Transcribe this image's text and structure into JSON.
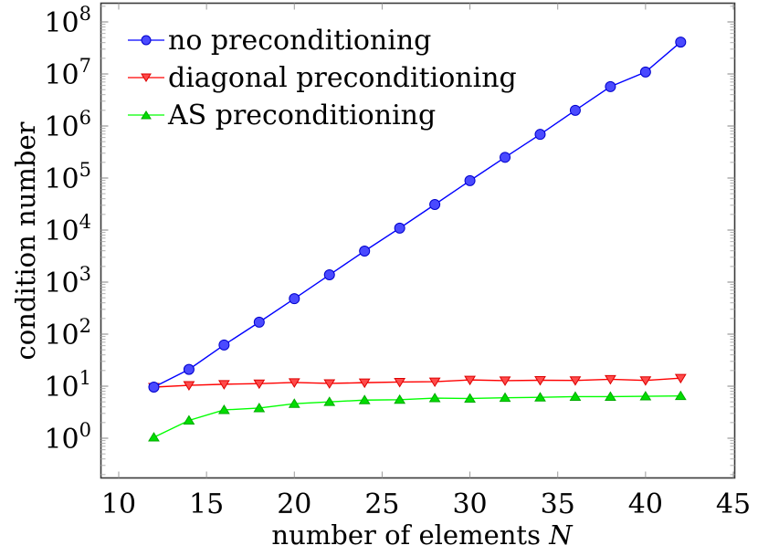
{
  "chart_data": {
    "type": "line",
    "title": "",
    "xlabel": "number of elements N",
    "ylabel": "condition number",
    "xscale": "linear",
    "yscale": "log",
    "xlim": [
      9,
      45
    ],
    "ylim": [
      0.18,
      230000000.0
    ],
    "xticks": [
      10,
      15,
      20,
      25,
      30,
      35,
      40,
      45
    ],
    "xtick_labels": [
      "10",
      "15",
      "20",
      "25",
      "30",
      "35",
      "40",
      "45"
    ],
    "yticks": [
      1,
      10,
      100,
      1000,
      10000,
      100000,
      1000000,
      10000000,
      100000000
    ],
    "ytick_labels": [
      "10^0",
      "10^1",
      "10^2",
      "10^3",
      "10^4",
      "10^5",
      "10^6",
      "10^7",
      "10^8"
    ],
    "grid": false,
    "legend_position": "upper left",
    "x": [
      12,
      14,
      16,
      18,
      20,
      22,
      24,
      26,
      28,
      30,
      32,
      34,
      36,
      38,
      40,
      42
    ],
    "series": [
      {
        "name": "no preconditioning",
        "color": "#0000ff",
        "marker": "circle",
        "values": [
          9.6,
          21,
          62,
          170,
          480,
          1380,
          3950,
          10900,
          31000,
          89000,
          250000,
          690000,
          2000000,
          5700000,
          10900000,
          41000000
        ]
      },
      {
        "name": "diagonal preconditioning",
        "color": "#ff0000",
        "marker": "triangle-down",
        "values": [
          9.6,
          10.4,
          10.9,
          11.2,
          11.8,
          11.3,
          11.7,
          12.0,
          12.2,
          13.2,
          12.8,
          13.0,
          12.9,
          13.6,
          12.9,
          14.3
        ]
      },
      {
        "name": "AS preconditioning",
        "color": "#00ff00",
        "marker": "triangle-up",
        "values": [
          1.04,
          2.2,
          3.5,
          3.8,
          4.6,
          5.0,
          5.4,
          5.5,
          5.9,
          5.8,
          6.0,
          6.1,
          6.3,
          6.3,
          6.4,
          6.5
        ]
      }
    ]
  },
  "axes": {
    "xlabel_text": "number of elements ",
    "xlabel_var": "N",
    "ylabel_text": "condition number"
  },
  "legend": {
    "items": [
      {
        "label": "no preconditioning"
      },
      {
        "label": "diagonal preconditioning"
      },
      {
        "label": "AS preconditioning"
      }
    ]
  }
}
